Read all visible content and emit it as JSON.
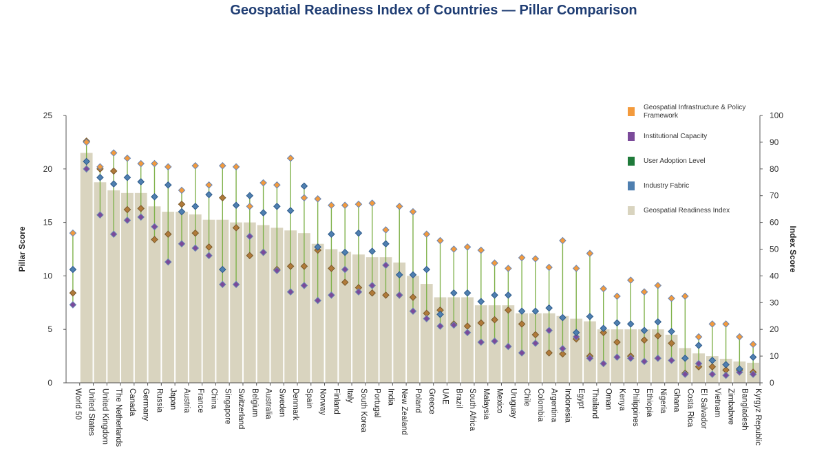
{
  "chart_data": {
    "type": "bar",
    "title": "Geospatial Readiness Index of Countries — Pillar Comparison",
    "ylabel": "Pillar Score",
    "y2label": "Index Score",
    "ylim": [
      0,
      25
    ],
    "y2lim": [
      0,
      100
    ],
    "yticks": [
      "0",
      "5",
      "10",
      "15",
      "20",
      "25"
    ],
    "y2ticks": [
      "0",
      "10",
      "20",
      "30",
      "40",
      "50",
      "60",
      "70",
      "80",
      "90",
      "100"
    ],
    "categories": [
      "World 50",
      "United States",
      "United Kingdom",
      "The Netherlands",
      "Canada",
      "Germany",
      "Russia",
      "Japan",
      "Austria",
      "France",
      "China",
      "Singapore",
      "Switzerland",
      "Belgium",
      "Australia",
      "Sweden",
      "Denmark",
      "Spain",
      "Norway",
      "Finland",
      "Italy",
      "South Korea",
      "Portugal",
      "India",
      "New Zealand",
      "Poland",
      "Greece",
      "UAE",
      "Brazil",
      "South Africa",
      "Malaysia",
      "Mexico",
      "Uruguay",
      "Chile",
      "Colombia",
      "Argentina",
      "Indonesia",
      "Egypt",
      "Thailand",
      "Oman",
      "Kenya",
      "Philippines",
      "Ethiopia",
      "Nigeria",
      "Ghana",
      "Costa Rica",
      "El Salvador",
      "Vietnam",
      "Zimbabwe",
      "Bangladesh",
      "Kyrgyz Republic"
    ],
    "legend_position": "top-right",
    "legend": [
      "Geospatial Infrastructure & Policy Framework",
      "Institutional Capacity",
      "User Adoption Level",
      "Industry Fabric",
      "Geospatial Readiness Index"
    ],
    "colors": {
      "infrastructure": "#f39a3c",
      "institutional": "#7b4a9a",
      "user_adoption": "#1f7a3a",
      "industry": "#4f7fb0",
      "index_bar": "#d9d4bf",
      "connector": "#7fb14a",
      "title": "#1f3d73"
    },
    "series": [
      {
        "name": "Geospatial Readiness Index",
        "axis": "right",
        "render": "bar",
        "values": [
          null,
          86,
          75,
          72,
          71,
          71,
          66,
          64,
          64,
          63,
          61,
          61,
          60,
          60,
          59,
          58,
          57,
          56,
          52,
          50,
          49,
          48,
          47,
          47,
          45,
          40,
          37,
          32,
          32,
          32,
          29,
          29,
          29,
          26,
          26,
          26,
          25,
          24,
          23,
          20,
          20,
          20,
          20,
          20,
          18,
          13,
          11,
          10,
          9,
          8,
          7.5
        ]
      },
      {
        "name": "Geospatial Infrastructure & Policy Framework",
        "axis": "left",
        "render": "marker",
        "values": [
          14.0,
          22.5,
          20.2,
          21.5,
          21.0,
          20.5,
          20.5,
          20.2,
          18.0,
          20.3,
          18.5,
          20.3,
          20.2,
          16.5,
          18.7,
          18.5,
          21.0,
          17.3,
          17.2,
          16.6,
          16.6,
          16.7,
          16.8,
          14.3,
          16.5,
          16.0,
          13.9,
          13.3,
          12.5,
          12.7,
          12.4,
          11.2,
          10.7,
          11.7,
          11.6,
          10.8,
          13.3,
          10.7,
          12.1,
          8.8,
          8.1,
          9.6,
          8.5,
          9.1,
          7.9,
          8.1,
          4.3,
          5.5,
          5.5,
          4.3,
          3.6
        ]
      },
      {
        "name": "Institutional Capacity",
        "axis": "left",
        "render": "marker",
        "values": [
          7.3,
          20.0,
          15.7,
          13.9,
          15.2,
          15.5,
          14.6,
          11.3,
          13.0,
          12.6,
          11.9,
          9.2,
          9.2,
          13.7,
          12.2,
          10.5,
          8.5,
          9.1,
          7.7,
          8.2,
          10.6,
          8.5,
          9.1,
          11.0,
          8.2,
          6.7,
          6.0,
          5.3,
          5.4,
          4.7,
          3.8,
          3.9,
          3.4,
          2.8,
          3.7,
          4.9,
          3.2,
          4.3,
          2.3,
          1.8,
          2.4,
          2.3,
          2.0,
          2.3,
          2.1,
          0.8,
          1.8,
          0.8,
          0.7,
          1.0,
          0.8
        ]
      },
      {
        "name": "User Adoption Level",
        "axis": "left",
        "render": "marker",
        "values": [
          8.4,
          22.6,
          20.0,
          19.8,
          16.2,
          16.3,
          13.4,
          13.9,
          16.7,
          14.0,
          12.7,
          17.3,
          14.5,
          11.9,
          12.2,
          10.6,
          10.9,
          10.9,
          12.4,
          10.7,
          9.4,
          8.9,
          8.4,
          8.2,
          8.2,
          8.0,
          6.5,
          6.8,
          5.5,
          5.3,
          5.6,
          5.9,
          6.8,
          5.5,
          4.5,
          2.8,
          2.7,
          4.1,
          2.5,
          4.7,
          3.8,
          2.5,
          4.0,
          4.4,
          3.7,
          0.9,
          1.5,
          1.5,
          1.2,
          1.2,
          1.0
        ]
      },
      {
        "name": "Industry Fabric",
        "axis": "left",
        "render": "marker",
        "values": [
          10.6,
          20.7,
          19.2,
          18.6,
          19.2,
          18.8,
          17.4,
          18.5,
          16.0,
          16.5,
          17.6,
          10.6,
          16.6,
          17.5,
          15.9,
          16.5,
          16.1,
          18.4,
          12.7,
          13.9,
          12.2,
          14.0,
          12.3,
          13.0,
          10.1,
          10.1,
          10.6,
          6.4,
          8.4,
          8.4,
          7.6,
          8.2,
          8.2,
          6.7,
          6.7,
          7.0,
          6.1,
          4.7,
          6.2,
          5.1,
          5.6,
          5.5,
          4.9,
          5.7,
          4.8,
          2.3,
          3.5,
          2.1,
          1.7,
          1.3,
          2.4
        ]
      }
    ]
  }
}
